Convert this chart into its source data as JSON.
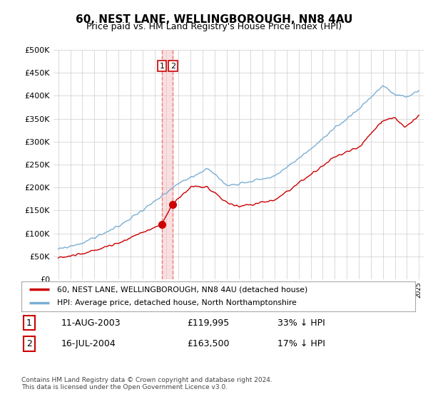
{
  "title": "60, NEST LANE, WELLINGBOROUGH, NN8 4AU",
  "subtitle": "Price paid vs. HM Land Registry's House Price Index (HPI)",
  "ytick_values": [
    0,
    50000,
    100000,
    150000,
    200000,
    250000,
    300000,
    350000,
    400000,
    450000,
    500000
  ],
  "ylim": [
    0,
    500000
  ],
  "xlim_left": 1994.6,
  "xlim_right": 2025.4,
  "legend_line1": "60, NEST LANE, WELLINGBOROUGH, NN8 4AU (detached house)",
  "legend_line2": "HPI: Average price, detached house, North Northamptonshire",
  "sale1_date": "11-AUG-2003",
  "sale1_price": "£119,995",
  "sale1_hpi": "33% ↓ HPI",
  "sale1_year": 2003.614,
  "sale1_value": 119995,
  "sale2_date": "16-JUL-2004",
  "sale2_price": "£163,500",
  "sale2_hpi": "17% ↓ HPI",
  "sale2_year": 2004.538,
  "sale2_value": 163500,
  "footer": "Contains HM Land Registry data © Crown copyright and database right 2024.\nThis data is licensed under the Open Government Licence v3.0.",
  "hpi_color": "#7bafd4",
  "price_color": "#cc0000",
  "vline_color": "#e88080",
  "vline_shade": "#f5c0c0",
  "background_color": "#ffffff",
  "grid_color": "#cccccc",
  "label_box_color": "#cc0000",
  "title_fontsize": 11,
  "subtitle_fontsize": 9
}
